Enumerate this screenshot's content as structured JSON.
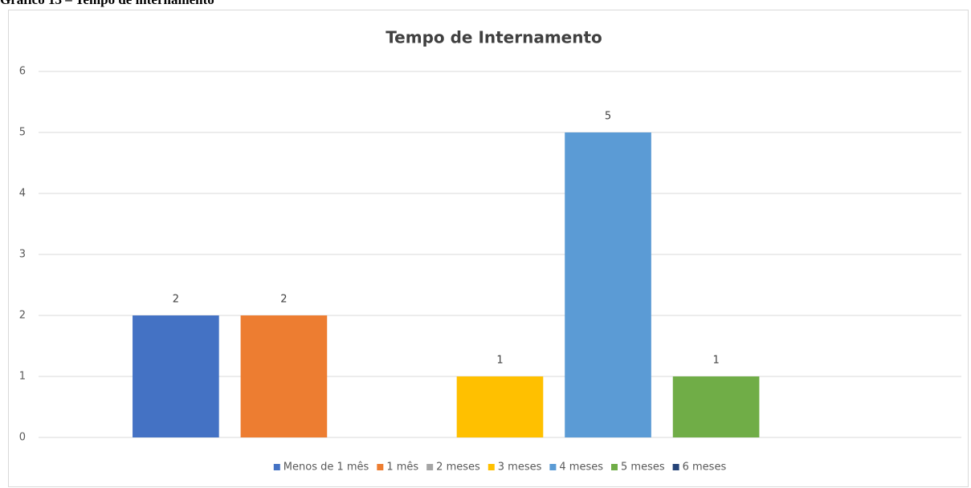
{
  "caption": "Gráfico 13 – Tempo de internamento",
  "chart_data": {
    "type": "bar",
    "title": "Tempo de Internamento",
    "series": [
      {
        "name": "Menos de 1 mês",
        "color": "#4472c4",
        "values": [
          2
        ]
      },
      {
        "name": "1 mês",
        "color": "#ed7d31",
        "values": [
          2
        ]
      },
      {
        "name": "2 meses",
        "color": "#a5a5a5",
        "values": [
          null
        ]
      },
      {
        "name": "3 meses",
        "color": "#ffc000",
        "values": [
          1
        ]
      },
      {
        "name": "4 meses",
        "color": "#5b9bd5",
        "values": [
          5
        ]
      },
      {
        "name": "5 meses",
        "color": "#70ad47",
        "values": [
          1
        ]
      },
      {
        "name": "6 meses",
        "color": "#264478",
        "values": [
          null
        ]
      }
    ],
    "ylim": [
      0,
      6
    ],
    "yticks": [
      0,
      1,
      2,
      3,
      4,
      5,
      6
    ],
    "grid": true,
    "legend": "bottom"
  }
}
